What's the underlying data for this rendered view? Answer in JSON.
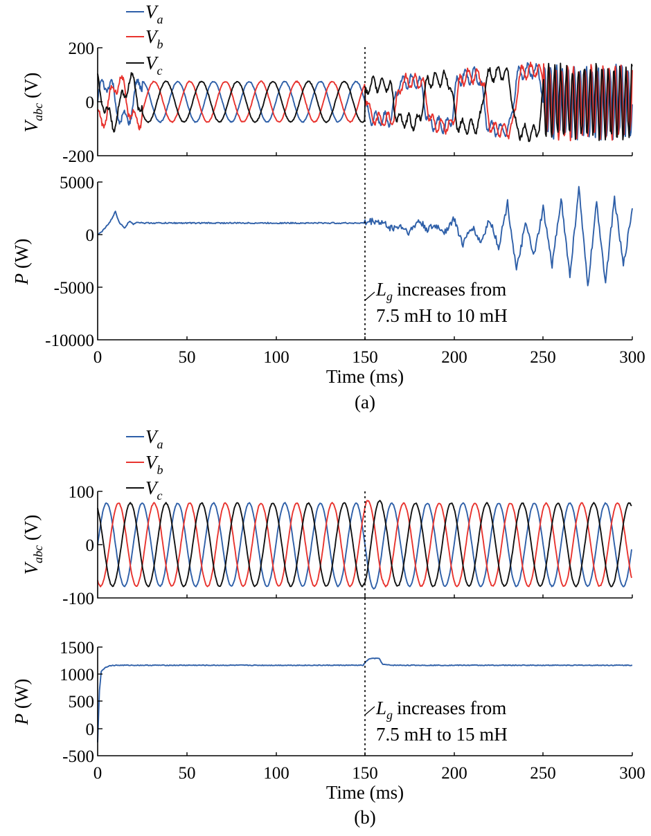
{
  "colors": {
    "Va": "#2e5fa8",
    "Vb": "#e8332e",
    "Vc": "#111111",
    "P": "#2e5fa8"
  },
  "legend": {
    "a": "V",
    "a_sub": "a",
    "b": "V",
    "b_sub": "b",
    "c": "V",
    "c_sub": "c"
  },
  "ylabel_v": {
    "main": "V",
    "sub": "abc",
    "unit": " (V)"
  },
  "ylabel_p": {
    "main": "P",
    "unit": " (W)"
  },
  "xlabel": "Time (ms)",
  "annotation_main": "L",
  "annotation_sub": "g",
  "chart_data": [
    {
      "type": "line",
      "panel": "(a)",
      "title": "",
      "xlabel": "",
      "ylabel": "Vabc (V)",
      "xlim": [
        0,
        300
      ],
      "ylim": [
        -200,
        200
      ],
      "yticks": [
        "200",
        "0",
        "-200"
      ],
      "series_description": "three-phase voltages Va, Vb, Vc",
      "series": [
        {
          "name": "Va",
          "values_description": "~50 Hz sinusoid, amplitude ~75 V before 150 ms; distorted/oscillatory up to ~150 V after 150 ms"
        },
        {
          "name": "Vb",
          "values_description": "~50 Hz sinusoid, amplitude ~75 V before 150 ms; distorted up to ~150 V after"
        },
        {
          "name": "Vc",
          "values_description": "~50 Hz sinusoid, amplitude ~75 V before 150 ms; distorted up to ~160 V after"
        }
      ],
      "event_x": 150
    },
    {
      "type": "line",
      "panel": "(a)",
      "title": "",
      "xlabel": "Time (ms)",
      "ylabel": "P (W)",
      "xlim": [
        0,
        300
      ],
      "ylim": [
        -10000,
        5000
      ],
      "xticks": [
        "0",
        "50",
        "100",
        "150",
        "200",
        "250",
        "300"
      ],
      "yticks": [
        "5000",
        "0",
        "-5000",
        "-10000"
      ],
      "series": [
        {
          "name": "P",
          "x": [
            0,
            2,
            5,
            8,
            10,
            12,
            15,
            18,
            20,
            22,
            25,
            50,
            100,
            150,
            155,
            160,
            165,
            170,
            175,
            180,
            185,
            190,
            195,
            200,
            205,
            210,
            215,
            220,
            225,
            230,
            235,
            240,
            245,
            250,
            255,
            260,
            265,
            270,
            275,
            280,
            285,
            290,
            295,
            300
          ],
          "values": [
            0,
            200,
            800,
            1500,
            2200,
            1200,
            600,
            1300,
            1000,
            1200,
            1100,
            1100,
            1100,
            1100,
            1300,
            1100,
            600,
            800,
            200,
            1300,
            500,
            800,
            300,
            1500,
            -1000,
            800,
            -800,
            1500,
            -1200,
            3000,
            -3500,
            1000,
            -2000,
            2500,
            -3000,
            3500,
            -4000,
            4500,
            -5000,
            3000,
            -4500,
            3500,
            -3000,
            2500
          ]
        }
      ],
      "event_x": 150,
      "annotation": "Lg increases from 7.5 mH to 10 mH"
    },
    {
      "type": "line",
      "panel": "(b)",
      "title": "",
      "xlabel": "",
      "ylabel": "Vabc (V)",
      "xlim": [
        0,
        300
      ],
      "ylim": [
        -100,
        100
      ],
      "yticks": [
        "100",
        "0",
        "-100"
      ],
      "series": [
        {
          "name": "Va",
          "amplitude": 78,
          "frequency_hz": 50,
          "phase_deg": 0
        },
        {
          "name": "Vb",
          "amplitude": 78,
          "frequency_hz": 50,
          "phase_deg": -120
        },
        {
          "name": "Vc",
          "amplitude": 78,
          "frequency_hz": 50,
          "phase_deg": 120
        }
      ],
      "event_x": 150
    },
    {
      "type": "line",
      "panel": "(b)",
      "title": "",
      "xlabel": "Time (ms)",
      "ylabel": "P (W)",
      "xlim": [
        0,
        300
      ],
      "ylim": [
        -500,
        1500
      ],
      "xticks": [
        "0",
        "50",
        "100",
        "150",
        "200",
        "250",
        "300"
      ],
      "yticks": [
        "1500",
        "1000",
        "500",
        "0",
        "-500"
      ],
      "series": [
        {
          "name": "P",
          "x": [
            0,
            1,
            2,
            4,
            6,
            8,
            10,
            50,
            100,
            149,
            151,
            153,
            158,
            160,
            165,
            200,
            250,
            300
          ],
          "values": [
            -250,
            700,
            1050,
            1120,
            1150,
            1160,
            1165,
            1165,
            1165,
            1165,
            1250,
            1290,
            1290,
            1180,
            1165,
            1165,
            1165,
            1165
          ]
        }
      ],
      "event_x": 150,
      "annotation": "Lg increases from 7.5 mH to 15 mH"
    }
  ],
  "panel_labels": [
    "(a)",
    "(b)"
  ],
  "annotations_text": {
    "a_line1": "increases from",
    "a_line2": "7.5 mH to 10 mH",
    "b_line1": "increases from",
    "b_line2": "7.5 mH to 15 mH"
  }
}
